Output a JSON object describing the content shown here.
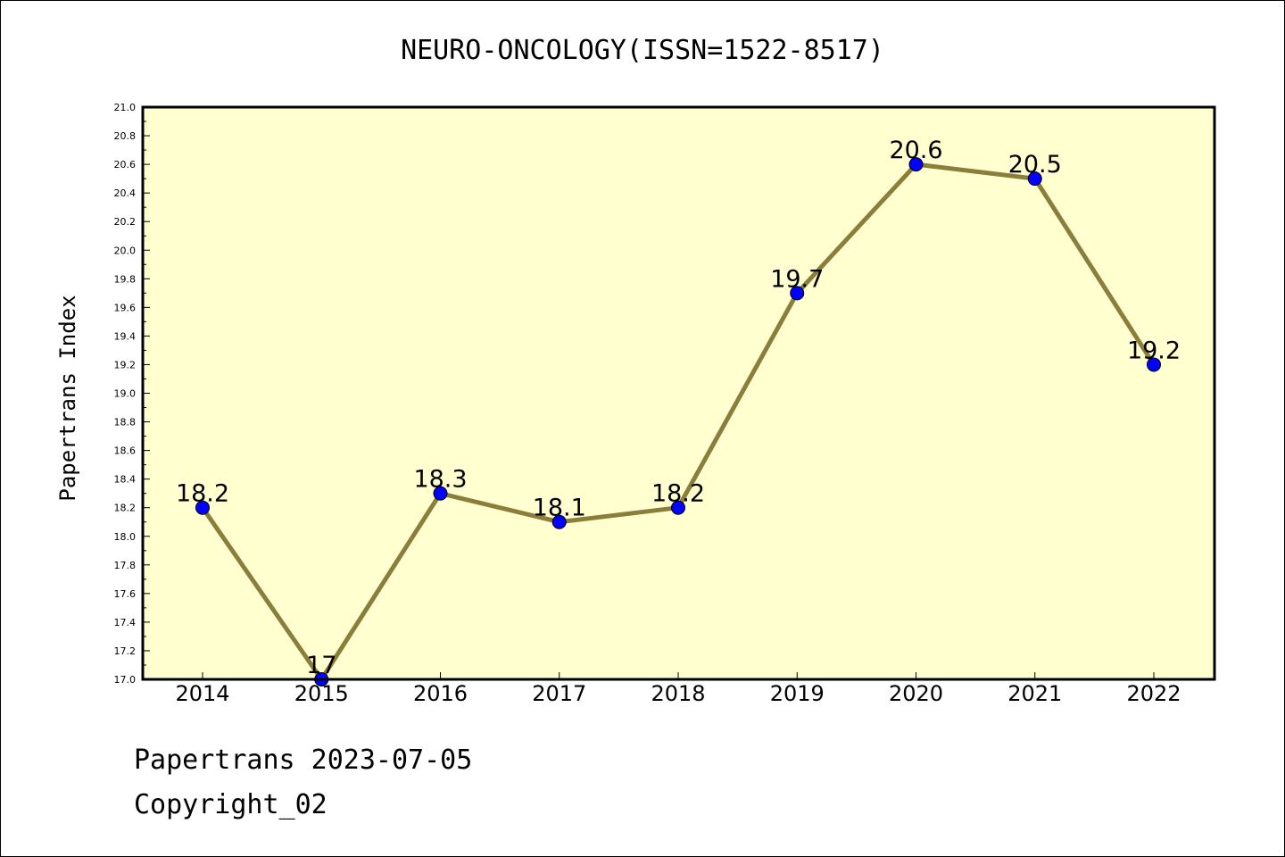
{
  "chart_data": {
    "type": "line",
    "title": "NEURO-ONCOLOGY(ISSN=1522-8517)",
    "xlabel": "",
    "ylabel": "Papertrans Index",
    "x": [
      "2014",
      "2015",
      "2016",
      "2017",
      "2018",
      "2019",
      "2020",
      "2021",
      "2022"
    ],
    "series": [
      {
        "values": [
          18.2,
          17.0,
          18.3,
          18.1,
          18.2,
          19.7,
          20.6,
          20.5,
          19.2
        ],
        "labels": [
          "18.2",
          "17",
          "18.3",
          "18.1",
          "18.2",
          "19.7",
          "20.6",
          "20.5",
          "19.2"
        ]
      }
    ],
    "ylim": [
      17.0,
      21.0
    ],
    "yticks": [
      "17.0",
      "17.2",
      "17.4",
      "17.6",
      "17.8",
      "18.0",
      "18.2",
      "18.4",
      "18.6",
      "18.8",
      "19.0",
      "19.2",
      "19.4",
      "19.6",
      "19.8",
      "20.0",
      "20.2",
      "20.4",
      "20.6",
      "20.8",
      "21.0"
    ],
    "grid": false,
    "legend": "none",
    "colors": {
      "plot_background": "#ffffd0",
      "line": "#8b7d3a",
      "marker": "#0000ff"
    }
  },
  "footer": {
    "date_line": "Papertrans 2023-07-05",
    "copyright": "Copyright_02"
  }
}
